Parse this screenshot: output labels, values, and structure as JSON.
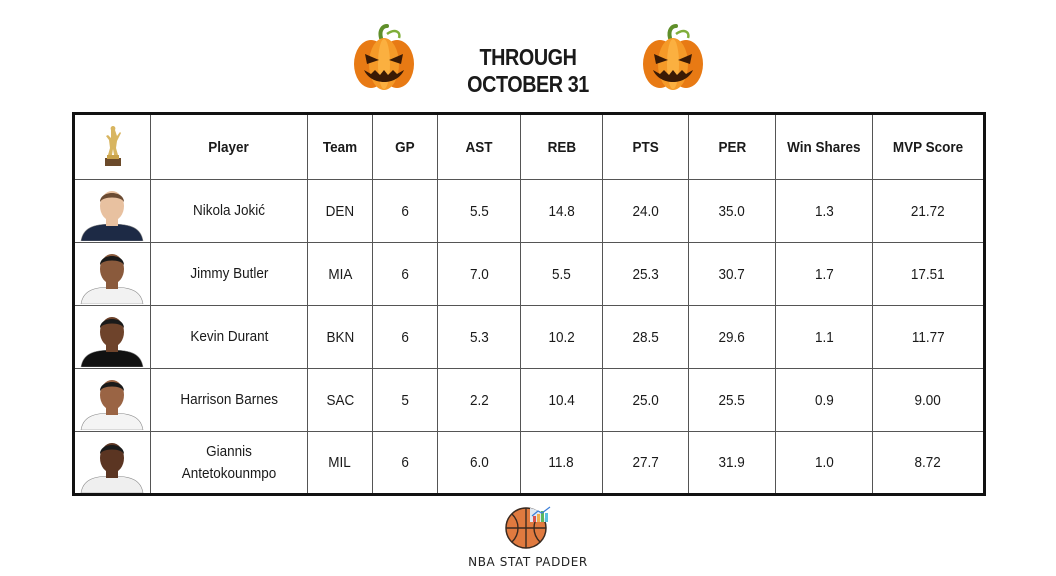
{
  "header": {
    "title": "THROUGH OCTOBER 31",
    "left_icon": "jack-o-lantern-icon",
    "right_icon": "jack-o-lantern-icon"
  },
  "table": {
    "corner_icon": "mvp-trophy-icon",
    "columns": [
      "Player",
      "Team",
      "GP",
      "AST",
      "REB",
      "PTS",
      "PER",
      "Win Shares",
      "MVP Score"
    ],
    "rows": [
      {
        "player": "Nikola Jokić",
        "team": "DEN",
        "gp": "6",
        "ast": "5.5",
        "reb": "14.8",
        "pts": "24.0",
        "per": "35.0",
        "ws": "1.3",
        "mvp": "21.72",
        "jersey_color": "#1d2a45",
        "skin_color": "#e8c1a0",
        "hair_color": "#6b4b32"
      },
      {
        "player": "Jimmy Butler",
        "team": "MIA",
        "gp": "6",
        "ast": "7.0",
        "reb": "5.5",
        "pts": "25.3",
        "per": "30.7",
        "ws": "1.7",
        "mvp": "17.51",
        "jersey_color": "#f2f2f2",
        "skin_color": "#8a5a3c",
        "hair_color": "#1a1a1a"
      },
      {
        "player": "Kevin Durant",
        "team": "BKN",
        "gp": "6",
        "ast": "5.3",
        "reb": "10.2",
        "pts": "28.5",
        "per": "29.6",
        "ws": "1.1",
        "mvp": "11.77",
        "jersey_color": "#111111",
        "skin_color": "#6e432b",
        "hair_color": "#1a1a1a"
      },
      {
        "player": "Harrison Barnes",
        "team": "SAC",
        "gp": "5",
        "ast": "2.2",
        "reb": "10.4",
        "pts": "25.0",
        "per": "25.5",
        "ws": "0.9",
        "mvp": "9.00",
        "jersey_color": "#f4f4f4",
        "skin_color": "#9a6444",
        "hair_color": "#1a1a1a"
      },
      {
        "player": "Giannis Antetokounmpo",
        "team": "MIL",
        "gp": "6",
        "ast": "6.0",
        "reb": "11.8",
        "pts": "27.7",
        "per": "31.9",
        "ws": "1.0",
        "mvp": "8.72",
        "jersey_color": "#efefef",
        "skin_color": "#5b3522",
        "hair_color": "#1a1a1a"
      }
    ]
  },
  "footer": {
    "brand": "NBA STAT PADDER",
    "logo_icon": "basketball-chart-icon"
  },
  "colors": {
    "pumpkin": "#f28a1a",
    "pumpkin_dark": "#c85e0c",
    "stem": "#5f8f2a",
    "ball": "#e07a3f",
    "border": "#111111"
  }
}
